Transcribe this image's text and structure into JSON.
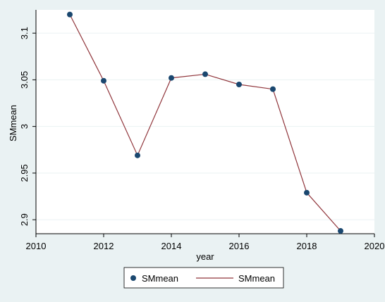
{
  "chart_data": {
    "type": "line",
    "title": "",
    "xlabel": "year",
    "ylabel": "SMmean",
    "xlim": [
      2010,
      2020
    ],
    "ylim": [
      2.885,
      3.125
    ],
    "x_ticks": [
      2010,
      2012,
      2014,
      2016,
      2018,
      2020
    ],
    "y_ticks": [
      2.9,
      2.95,
      3,
      3.05,
      3.1
    ],
    "x_tick_labels": [
      "2010",
      "2012",
      "2014",
      "2016",
      "2018",
      "2020"
    ],
    "y_tick_labels": [
      "2.9",
      "2.95",
      "3",
      "3.05",
      "3.1"
    ],
    "grid": true,
    "legend_position": "bottom",
    "series": [
      {
        "name": "SMmean",
        "style": "markers",
        "color": "#1a476f",
        "x": [
          2011,
          2012,
          2013,
          2014,
          2015,
          2016,
          2017,
          2018,
          2019
        ],
        "y": [
          3.12,
          3.049,
          2.969,
          3.052,
          3.056,
          3.045,
          3.04,
          2.929,
          2.888
        ]
      },
      {
        "name": "SMmean",
        "style": "line",
        "color": "#90353b",
        "x": [
          2011,
          2012,
          2013,
          2014,
          2015,
          2016,
          2017,
          2018,
          2019
        ],
        "y": [
          3.12,
          3.049,
          2.969,
          3.052,
          3.056,
          3.045,
          3.04,
          2.929,
          2.888
        ]
      }
    ]
  }
}
